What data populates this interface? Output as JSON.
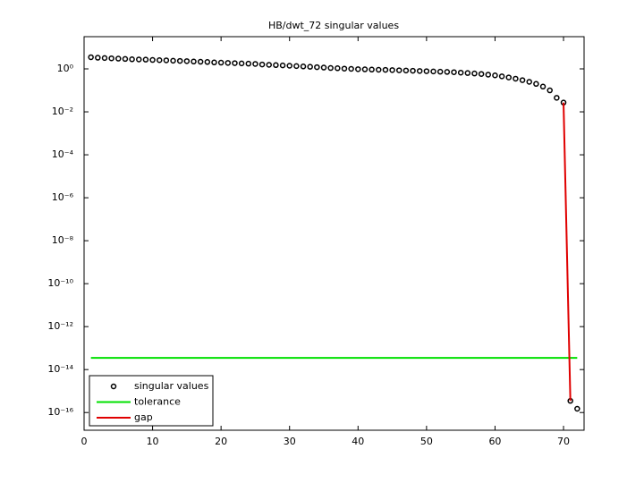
{
  "chart_data": {
    "type": "scatter",
    "title": "HB/dwt_72 singular values",
    "xlim": [
      0,
      73
    ],
    "xticks": [
      0,
      10,
      20,
      30,
      40,
      50,
      60,
      70
    ],
    "ylim": [
      1.5e-17,
      31.6
    ],
    "yscale": "log",
    "yticks": [
      {
        "value": 1,
        "label": "10⁰"
      },
      {
        "value": 0.01,
        "label": "10⁻²"
      },
      {
        "value": 0.0001,
        "label": "10⁻⁴"
      },
      {
        "value": 1e-06,
        "label": "10⁻⁶"
      },
      {
        "value": 1e-08,
        "label": "10⁻⁸"
      },
      {
        "value": 1e-10,
        "label": "10⁻¹⁰"
      },
      {
        "value": 1e-12,
        "label": "10⁻¹²"
      },
      {
        "value": 1e-14,
        "label": "10⁻¹⁴"
      },
      {
        "value": 1e-16,
        "label": "10⁻¹⁶"
      }
    ],
    "legend": "lower left",
    "series": [
      {
        "name": "singular values",
        "mode": "markers",
        "color": "#000000",
        "x": [
          1,
          2,
          3,
          4,
          5,
          6,
          7,
          8,
          9,
          10,
          11,
          12,
          13,
          14,
          15,
          16,
          17,
          18,
          19,
          20,
          21,
          22,
          23,
          24,
          25,
          26,
          27,
          28,
          29,
          30,
          31,
          32,
          33,
          34,
          35,
          36,
          37,
          38,
          39,
          40,
          41,
          42,
          43,
          44,
          45,
          46,
          47,
          48,
          49,
          50,
          51,
          52,
          53,
          54,
          55,
          56,
          57,
          58,
          59,
          60,
          61,
          62,
          63,
          64,
          65,
          66,
          67,
          68,
          69,
          70,
          71,
          72
        ],
        "values": [
          3.5,
          3.3,
          3.2,
          3.1,
          3.0,
          2.9,
          2.8,
          2.75,
          2.7,
          2.6,
          2.55,
          2.5,
          2.4,
          2.35,
          2.3,
          2.2,
          2.15,
          2.1,
          2.0,
          1.95,
          1.9,
          1.85,
          1.8,
          1.75,
          1.7,
          1.6,
          1.55,
          1.5,
          1.45,
          1.4,
          1.35,
          1.3,
          1.25,
          1.2,
          1.15,
          1.1,
          1.07,
          1.03,
          1.0,
          0.97,
          0.95,
          0.93,
          0.91,
          0.9,
          0.88,
          0.86,
          0.84,
          0.82,
          0.8,
          0.78,
          0.76,
          0.74,
          0.72,
          0.7,
          0.67,
          0.64,
          0.61,
          0.58,
          0.54,
          0.5,
          0.45,
          0.4,
          0.35,
          0.3,
          0.25,
          0.2,
          0.15,
          0.1,
          0.045,
          0.027,
          3.5e-16,
          1.5e-16
        ]
      },
      {
        "name": "tolerance",
        "mode": "line",
        "color": "#00e000",
        "x": [
          1,
          72
        ],
        "values": [
          3.5e-14,
          3.5e-14
        ]
      },
      {
        "name": "gap",
        "mode": "line",
        "color": "#e00000",
        "x": [
          70,
          71
        ],
        "values": [
          0.027,
          3.5e-16
        ]
      }
    ]
  }
}
